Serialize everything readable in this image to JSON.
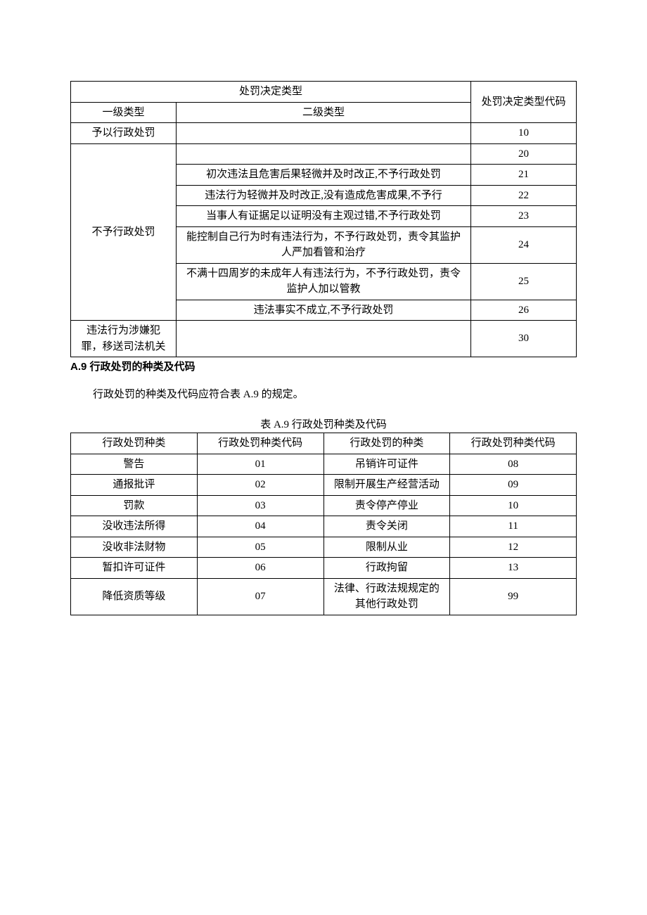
{
  "table1": {
    "header_main": "处罚决定类型",
    "header_code": "处罚决定类型代码",
    "header_col1": "一级类型",
    "header_col2": "二级类型",
    "rows": [
      {
        "level1": "予以行政处罚",
        "level2": "",
        "code": "10"
      }
    ],
    "group2_level1": "不予行政处罚",
    "group2_rows": [
      {
        "level2": "",
        "code": "20"
      },
      {
        "level2": "初次违法且危害后果轻微并及时改正,不予行政处罚",
        "code": "21"
      },
      {
        "level2": "违法行为轻微并及时改正,没有造成危害成果,不予行",
        "code": "22"
      },
      {
        "level2": "当事人有证据足以证明没有主观过错,不予行政处罚",
        "code": "23"
      },
      {
        "level2": "能控制自己行为时有违法行为，不予行政处罚，责令其监护人严加看管和治疗",
        "code": "24"
      },
      {
        "level2": "不满十四周岁的未成年人有违法行为，不予行政处罚，责令监护人加以管教",
        "code": "25"
      },
      {
        "level2": "违法事实不成立,不予行政处罚",
        "code": "26"
      }
    ],
    "row_last": {
      "level1": "违法行为涉嫌犯罪，移送司法机关",
      "level2": "",
      "code": "30"
    }
  },
  "section": {
    "heading": "A.9 行政处罚的种类及代码",
    "body": "行政处罚的种类及代码应符合表 A.9 的规定。",
    "caption": "表 A.9 行政处罚种类及代码"
  },
  "table2": {
    "headers": [
      "行政处罚种类",
      "行政处罚种类代码",
      "行政处罚的种类",
      "行政处罚种类代码"
    ],
    "rows": [
      [
        "警告",
        "01",
        "吊销许可证件",
        "08"
      ],
      [
        "通报批评",
        "02",
        "限制开展生产经营活动",
        "09"
      ],
      [
        "罚款",
        "03",
        "责令停产停业",
        "10"
      ],
      [
        "没收违法所得",
        "04",
        "责令关闭",
        "11"
      ],
      [
        "没收非法财物",
        "05",
        "限制从业",
        "12"
      ],
      [
        "暂扣许可证件",
        "06",
        "行政拘留",
        "13"
      ],
      [
        "降低资质等级",
        "07",
        "法律、行政法规规定的其他行政处罚",
        "99"
      ]
    ]
  }
}
